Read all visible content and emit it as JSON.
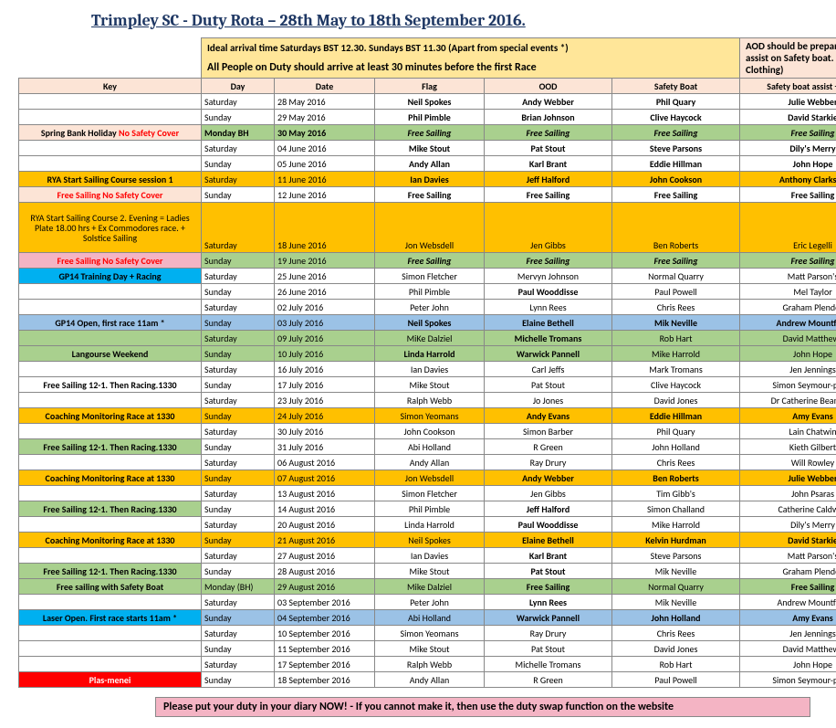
{
  "title": "Trimpley SC - Duty Rota – 28th May to 18th September 2016.",
  "banner_left_1": "Ideal arrival time  Saturdays BST 12.30.  Sundays BST 11.30 (Apart from special events *)",
  "banner_left_2": "All People on Duty should arrive at least 30 minutes before the first Race",
  "banner_right": "AOD should be prepared to assist on Safety boat.   (Warm Clothing)",
  "cols": {
    "key": "Key",
    "day": "Day",
    "date": "Date",
    "flag": "Flag",
    "ood": "OOD",
    "sb": "Safety Boat",
    "sba": "Safety boat assist + AOD"
  },
  "palette": {
    "none": "#ffffff",
    "green": "#a9d08e",
    "orange": "#ffc000",
    "pink": "#fce4d6",
    "pinkdark": "#f4b4c4",
    "blue": "#9bc2e6",
    "bluebright": "#00b0f0",
    "red": "#ff0000",
    "redtext": "#ff0000",
    "yellow": "#ffff00"
  },
  "rows": [
    {
      "key": "",
      "kbg": "none",
      "day": "Saturday",
      "date": "28 May 2016",
      "flag": "Neil Spokes",
      "ood": "Andy Webber",
      "sb": "Phil Quary",
      "sba": "Julie Webber",
      "rbg": "none",
      "b": [
        "flag",
        "ood",
        "sb",
        "sba"
      ]
    },
    {
      "key": "",
      "kbg": "none",
      "day": "Sunday",
      "date": "29 May 2016",
      "flag": "Phil Pimble",
      "ood": "Brian Johnson",
      "sb": "Clive Haycock",
      "sba": "David Starkie",
      "rbg": "none",
      "b": [
        "flag",
        "ood",
        "sb",
        "sba"
      ]
    },
    {
      "key": "Spring Bank Holiday   No Safety Cover",
      "kbg": "pink",
      "kparts": [
        {
          "t": "Spring Bank Holiday   ",
          "c": "#000"
        },
        {
          "t": "No Safety Cover",
          "c": "#ff0000"
        }
      ],
      "day": "Monday BH",
      "date": "30 May 2016",
      "flag": "Free Sailing",
      "ood": "Free Sailing",
      "sb": "Free Sailing",
      "sba": "Free Sailing",
      "rbg": "green",
      "b": [
        "day",
        "date",
        "flag",
        "ood",
        "sb",
        "sba"
      ],
      "i": [
        "flag",
        "ood",
        "sb",
        "sba"
      ]
    },
    {
      "key": "",
      "kbg": "none",
      "day": "Saturday",
      "date": "04 June 2016",
      "flag": "Mike Stout",
      "ood": "Pat Stout",
      "sb": "Steve Parsons",
      "sba": "Dily's Merry",
      "rbg": "none",
      "b": [
        "flag",
        "ood",
        "sb",
        "sba"
      ]
    },
    {
      "key": "",
      "kbg": "none",
      "day": "Sunday",
      "date": "05 June 2016",
      "flag": "Andy Allan",
      "ood": "Karl Brant",
      "sb": "Eddie Hillman",
      "sba": "John Hope",
      "rbg": "none",
      "b": [
        "flag",
        "ood",
        "sb",
        "sba"
      ]
    },
    {
      "key": "RYA  Start Sailing Course session 1",
      "kbg": "orange",
      "day": "Saturday",
      "date": "11 June 2016",
      "flag": "Ian Davies",
      "ood": "Jeff Halford",
      "sb": "John Cookson",
      "sba": "Anthony Clarkson",
      "rbg": "orange",
      "b": [
        "key",
        "flag",
        "ood",
        "sb",
        "sba"
      ]
    },
    {
      "key": "Free Sailing No Safety Cover",
      "kbg": "pink",
      "kc": "#ff0000",
      "day": "Sunday",
      "date": "12 June 2016",
      "flag": "Free Sailing",
      "ood": "Free Sailing",
      "sb": "Free Sailing",
      "sba": "Free Sailing",
      "rbg": "none",
      "b": [
        "key",
        "flag",
        "ood",
        "sb",
        "sba"
      ]
    },
    {
      "key": "RYA Start Sailing Course 2.  Evening =  Ladies Plate 18.00 hrs +  Ex Commodores race.   + Solstice Sailing",
      "kbg": "orange",
      "wrap": true,
      "day": "Saturday",
      "date": "18 June 2016",
      "flag": "Jon Websdell",
      "ood": "Jen Gibbs",
      "sb": "Ben Roberts",
      "sba": "Eric Legelli",
      "rbg": "orange",
      "tall": true
    },
    {
      "key": "Free Sailing No Safety Cover",
      "kbg": "pinkdark",
      "kc": "#ff0000",
      "day": "Sunday",
      "date": "19 June 2016",
      "flag": "Free Sailing",
      "ood": "Free Sailing",
      "sb": "Free Sailing",
      "sba": "Free Sailing",
      "rbg": "green",
      "b": [
        "key",
        "flag",
        "ood",
        "sb",
        "sba"
      ],
      "i": [
        "flag",
        "ood",
        "sb",
        "sba"
      ]
    },
    {
      "key": "GP14 Training Day + Racing",
      "kbg": "bluebright",
      "day": "Saturday",
      "date": "25 June 2016",
      "flag": "Simon Fletcher",
      "ood": "Mervyn Johnson",
      "sb": "Normal Quarry",
      "sba": "Matt Parson's",
      "rbg": "none"
    },
    {
      "key": "",
      "kbg": "none",
      "day": "Sunday",
      "date": "26 June 2016",
      "flag": "Phil Pimble",
      "ood": "Paul Wooddisse",
      "sb": "Paul Powell",
      "sba": "Mel Taylor",
      "rbg": "none",
      "b": [
        "ood"
      ]
    },
    {
      "key": "",
      "kbg": "none",
      "day": "Saturday",
      "date": "02 July 2016",
      "flag": "Peter John",
      "ood": "Lynn Rees",
      "sb": "Chris Rees",
      "sba": "Graham Plender",
      "rbg": "none"
    },
    {
      "key": "GP14 Open, first race 11am *",
      "kbg": "blue",
      "day": "Sunday",
      "date": "03 July 2016",
      "flag": "Neil Spokes",
      "ood": "Elaine Bethell",
      "sb": "Mik Neville",
      "sba": "Andrew Mountford",
      "rbg": "blue",
      "b": [
        "flag",
        "ood",
        "sb",
        "sba"
      ]
    },
    {
      "key": "",
      "kbg": "green",
      "day": "Saturday",
      "date": "09 July 2016",
      "flag": "MiKe Dalziel",
      "ood": "Michelle Tromans",
      "sb": "Rob Hart",
      "sba": "David Matthews",
      "rbg": "green",
      "b": [
        "ood"
      ]
    },
    {
      "key": "Langourse Weekend",
      "kbg": "green",
      "day": "Sunday",
      "date": "10 July 2016",
      "flag": "Linda Harrold",
      "ood": "Warwick Pannell",
      "sb": "Mike Harrold",
      "sba": "John Hope",
      "rbg": "green",
      "b": [
        "flag",
        "ood"
      ]
    },
    {
      "key": "",
      "kbg": "none",
      "day": "Saturday",
      "date": "16 July 2016",
      "flag": "Ian Davies",
      "ood": "Carl Jeffs",
      "sb": "Mark Tromans",
      "sba": "Jen Jennings",
      "rbg": "none"
    },
    {
      "key": "Free Sailing 12-1. Then Racing.1330",
      "kbg": "none",
      "day": "Sunday",
      "date": "17 July 2016",
      "flag": "Mike Stout",
      "ood": "Pat Stout",
      "sb": "Clive Haycock",
      "sba": "Simon Seymour-perry",
      "rbg": "none"
    },
    {
      "key": "",
      "kbg": "none",
      "day": "Saturday",
      "date": "23 July 2016",
      "flag": "Ralph Webb",
      "ood": "Jo Jones",
      "sb": "David Jones",
      "sba": "Dr Catherine Beanland",
      "rbg": "none"
    },
    {
      "key": "Coaching Monitoring  Race at 1330",
      "kbg": "orange",
      "day": "Sunday",
      "date": "24 July 2016",
      "flag": "Simon Yeomans",
      "ood": "Andy Evans",
      "sb": "Eddie Hillman",
      "sba": "Amy Evans",
      "rbg": "orange",
      "b": [
        "ood",
        "sb",
        "sba"
      ]
    },
    {
      "key": "",
      "kbg": "none",
      "day": "Saturday",
      "date": "30 July 2016",
      "flag": "John Cookson",
      "ood": "Simon Barber",
      "sb": "Phil Quary",
      "sba": "Lain Chatwin",
      "rbg": "none"
    },
    {
      "key": "Free Sailing 12-1. Then Racing.1330",
      "kbg": "green",
      "day": "Sunday",
      "date": "31 July 2016",
      "flag": "Abi Holland",
      "ood": "R Green",
      "sb": "John Holland",
      "sba": "Kieth Gilbert",
      "rbg": "none"
    },
    {
      "key": "",
      "kbg": "none",
      "day": "Saturday",
      "date": "06 August 2016",
      "flag": "Andy Allan",
      "ood": "Ray Drury",
      "sb": "Chris Rees",
      "sba": "Will Rowley",
      "rbg": "none"
    },
    {
      "key": "Coaching Monitoring  Race at 1330",
      "kbg": "orange",
      "day": "Sunday",
      "date": "07 August 2016",
      "flag": "Jon Websdell",
      "ood": "Andy Webber",
      "sb": "Ben Roberts",
      "sba": "Julie Webber",
      "rbg": "orange",
      "b": [
        "ood",
        "sb",
        "sba"
      ]
    },
    {
      "key": "",
      "kbg": "none",
      "day": "Saturday",
      "date": "13 August 2016",
      "flag": "Simon Fletcher",
      "ood": "Jen Gibbs",
      "sb": "Tim Gibb's",
      "sba": "John Psaras",
      "rbg": "none"
    },
    {
      "key": "Free Sailing 12-1. Then Racing.1330",
      "kbg": "green",
      "day": "Sunday",
      "date": "14 August 2016",
      "flag": "Phil Pimble",
      "ood": "Jeff Halford",
      "sb": "Simon Challand",
      "sba": "Catherine Caldwell",
      "rbg": "none",
      "b": [
        "ood"
      ]
    },
    {
      "key": "",
      "kbg": "none",
      "day": "Saturday",
      "date": "20 August 2016",
      "flag": "Linda Harrold",
      "ood": "Paul Wooddisse",
      "sb": "Mike Harrold",
      "sba": "Dily's Merry",
      "rbg": "none",
      "b": [
        "ood"
      ]
    },
    {
      "key": "Coaching Monitoring  Race at 1330",
      "kbg": "orange",
      "day": "Sunday",
      "date": "21 August 2016",
      "flag": "Neil Spokes",
      "ood": "Elaine Bethell",
      "sb": "Kelvin Hurdman",
      "sba": "David Starkie",
      "rbg": "orange",
      "b": [
        "ood",
        "sb",
        "sba"
      ]
    },
    {
      "key": "",
      "kbg": "none",
      "day": "Saturday",
      "date": "27 August 2016",
      "flag": "Ian Davies",
      "ood": "Karl Brant",
      "sb": "Steve Parsons",
      "sba": "Matt Parson's",
      "rbg": "none",
      "b": [
        "ood"
      ]
    },
    {
      "key": "Free Sailing 12-1. Then Racing.1330",
      "kbg": "green",
      "day": "Sunday",
      "date": "28 August 2016",
      "flag": "Mike Stout",
      "ood": "Pat Stout",
      "sb": "Mik Neville",
      "sba": "Graham Plender",
      "rbg": "none",
      "b": [
        "ood"
      ]
    },
    {
      "key": "Free sailing with Safety Boat",
      "kbg": "green",
      "day": "Monday (BH)",
      "date": "29 August 2016",
      "flag": "Mike Dalziel",
      "ood": "Free Sailing",
      "sb": "Normal Quarry",
      "sba": "Free Sailing",
      "rbg": "green",
      "b": [
        "ood",
        "sba"
      ]
    },
    {
      "key": "",
      "kbg": "none",
      "day": "Saturday",
      "date": "03 September 2016",
      "flag": "Peter John",
      "ood": "Lynn Rees",
      "sb": "Mik Neville",
      "sba": "Andrew Mountford",
      "rbg": "none",
      "b": [
        "ood"
      ]
    },
    {
      "key": "Laser Open.  First race starts 11am *",
      "kbg": "bluebright",
      "day": "Sunday",
      "date": "04 September 2016",
      "flag": "Abi Holland",
      "ood": "Warwick Pannell",
      "sb": "John Holland",
      "sba": "Amy Evans",
      "rbg": "blue",
      "b": [
        "key",
        "ood",
        "sb",
        "sba"
      ]
    },
    {
      "key": "",
      "kbg": "none",
      "day": "Saturday",
      "date": "10 September 2016",
      "flag": "Simon Yeomans",
      "ood": "Ray Drury",
      "sb": "Chris Rees",
      "sba": "Jen Jennings",
      "rbg": "none"
    },
    {
      "key": "",
      "kbg": "none",
      "day": "Sunday",
      "date": "11 September 2016",
      "flag": "Mike Stout",
      "ood": "Pat Stout",
      "sb": "David Jones",
      "sba": "David Matthews",
      "rbg": "none"
    },
    {
      "key": "",
      "kbg": "none",
      "day": "Saturday",
      "date": "17 September 2016",
      "flag": "Ralph Webb",
      "ood": "Michelle Tromans",
      "sb": "Rob Hart",
      "sba": "John Hope",
      "rbg": "none"
    },
    {
      "key": "Plas-menei",
      "kbg": "red",
      "kc": "#ffffff",
      "day": "Sunday",
      "date": "18 September 2016",
      "flag": "Andy Allan",
      "ood": "R Green",
      "sb": "Paul Powell",
      "sba": "Simon Seymour-perry",
      "rbg": "none"
    }
  ],
  "footer": "Please put your duty in your diary NOW! - If you cannot make it, then use the duty swap function on the website"
}
